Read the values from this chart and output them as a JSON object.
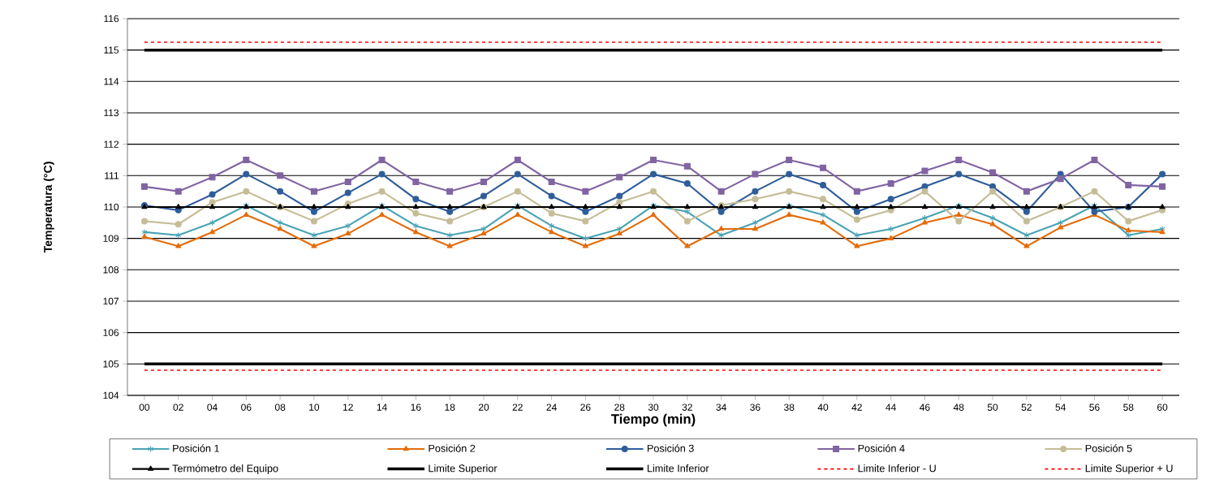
{
  "chart_data": {
    "type": "line",
    "xlabel": "Tiempo (min)",
    "ylabel": "Temperatura (°C)",
    "categories": [
      "00",
      "02",
      "04",
      "06",
      "08",
      "10",
      "12",
      "14",
      "16",
      "18",
      "20",
      "22",
      "24",
      "26",
      "28",
      "30",
      "32",
      "34",
      "36",
      "38",
      "40",
      "42",
      "44",
      "46",
      "48",
      "50",
      "52",
      "54",
      "56",
      "58",
      "60"
    ],
    "ylim": [
      104,
      116
    ],
    "yticks": [
      104,
      105,
      106,
      107,
      108,
      109,
      110,
      111,
      112,
      113,
      114,
      115,
      116
    ],
    "grid": "y",
    "legend": "bottom",
    "series": [
      {
        "name": "Posición 1",
        "color": "#4aa3b5",
        "marker": "cross",
        "line_style": "solid",
        "values": [
          109.2,
          109.1,
          109.5,
          110.05,
          109.5,
          109.1,
          109.4,
          110.05,
          109.4,
          109.1,
          109.3,
          110.05,
          109.4,
          109.0,
          109.3,
          110.05,
          109.85,
          109.1,
          109.5,
          110.05,
          109.75,
          109.1,
          109.3,
          109.65,
          110.05,
          109.65,
          109.1,
          109.5,
          110.05,
          109.1,
          109.3
        ]
      },
      {
        "name": "Posición 2",
        "color": "#e46c0a",
        "marker": "triangle",
        "line_style": "solid",
        "values": [
          109.05,
          108.75,
          109.2,
          109.75,
          109.3,
          108.75,
          109.15,
          109.75,
          109.2,
          108.75,
          109.15,
          109.75,
          109.2,
          108.75,
          109.15,
          109.75,
          108.75,
          109.3,
          109.3,
          109.75,
          109.5,
          108.75,
          109.0,
          109.5,
          109.75,
          109.45,
          108.75,
          109.35,
          109.75,
          109.25,
          109.2
        ]
      },
      {
        "name": "Posición 3",
        "color": "#2e5d9a",
        "marker": "circle",
        "line_style": "solid",
        "values": [
          110.05,
          109.9,
          110.4,
          111.05,
          110.5,
          109.85,
          110.45,
          111.05,
          110.25,
          109.85,
          110.35,
          111.05,
          110.35,
          109.85,
          110.35,
          111.05,
          110.75,
          109.85,
          110.5,
          111.05,
          110.7,
          109.85,
          110.25,
          110.65,
          111.05,
          110.65,
          109.85,
          111.05,
          109.85,
          110.0,
          111.05
        ]
      },
      {
        "name": "Posición 4",
        "color": "#8064a2",
        "marker": "square",
        "line_style": "solid",
        "values": [
          110.65,
          110.5,
          110.95,
          111.5,
          111.0,
          110.5,
          110.8,
          111.5,
          110.8,
          110.5,
          110.8,
          111.5,
          110.8,
          110.5,
          110.95,
          111.5,
          111.3,
          110.5,
          111.05,
          111.5,
          111.25,
          110.5,
          110.75,
          111.15,
          111.5,
          111.1,
          110.5,
          110.9,
          111.5,
          110.7,
          110.65
        ]
      },
      {
        "name": "Posición 5",
        "color": "#c4bd97",
        "marker": "circle",
        "line_style": "solid",
        "values": [
          109.55,
          109.45,
          110.15,
          110.5,
          110.0,
          109.55,
          110.1,
          110.5,
          109.8,
          109.55,
          110.0,
          110.5,
          109.8,
          109.55,
          110.15,
          110.5,
          109.55,
          110.05,
          110.25,
          110.5,
          110.25,
          109.6,
          109.9,
          110.5,
          109.55,
          110.5,
          109.55,
          110.0,
          110.5,
          109.55,
          109.9
        ]
      },
      {
        "name": "Termómetro del Equipo",
        "color": "#000000",
        "marker": "triangle",
        "line_style": "solid",
        "values": [
          110,
          110,
          110,
          110,
          110,
          110,
          110,
          110,
          110,
          110,
          110,
          110,
          110,
          110,
          110,
          110,
          110,
          110,
          110,
          110,
          110,
          110,
          110,
          110,
          110,
          110,
          110,
          110,
          110,
          110,
          110
        ]
      },
      {
        "name": "Limite Superior",
        "color": "#000000",
        "marker": "none",
        "line_style": "solid",
        "values": [
          115,
          115,
          115,
          115,
          115,
          115,
          115,
          115,
          115,
          115,
          115,
          115,
          115,
          115,
          115,
          115,
          115,
          115,
          115,
          115,
          115,
          115,
          115,
          115,
          115,
          115,
          115,
          115,
          115,
          115,
          115
        ]
      },
      {
        "name": "Limite Inferior",
        "color": "#000000",
        "marker": "none",
        "line_style": "solid",
        "values": [
          105,
          105,
          105,
          105,
          105,
          105,
          105,
          105,
          105,
          105,
          105,
          105,
          105,
          105,
          105,
          105,
          105,
          105,
          105,
          105,
          105,
          105,
          105,
          105,
          105,
          105,
          105,
          105,
          105,
          105,
          105
        ]
      },
      {
        "name": "Limite Inferior -  U",
        "color": "#ff0000",
        "marker": "none",
        "line_style": "dashed",
        "values": [
          104.8,
          104.8,
          104.8,
          104.8,
          104.8,
          104.8,
          104.8,
          104.8,
          104.8,
          104.8,
          104.8,
          104.8,
          104.8,
          104.8,
          104.8,
          104.8,
          104.8,
          104.8,
          104.8,
          104.8,
          104.8,
          104.8,
          104.8,
          104.8,
          104.8,
          104.8,
          104.8,
          104.8,
          104.8,
          104.8,
          104.8
        ]
      },
      {
        "name": "Limite Superior +  U",
        "color": "#ff0000",
        "marker": "none",
        "line_style": "dashed",
        "values": [
          115.25,
          115.25,
          115.25,
          115.25,
          115.25,
          115.25,
          115.25,
          115.25,
          115.25,
          115.25,
          115.25,
          115.25,
          115.25,
          115.25,
          115.25,
          115.25,
          115.25,
          115.25,
          115.25,
          115.25,
          115.25,
          115.25,
          115.25,
          115.25,
          115.25,
          115.25,
          115.25,
          115.25,
          115.25,
          115.25,
          115.25
        ]
      }
    ]
  }
}
